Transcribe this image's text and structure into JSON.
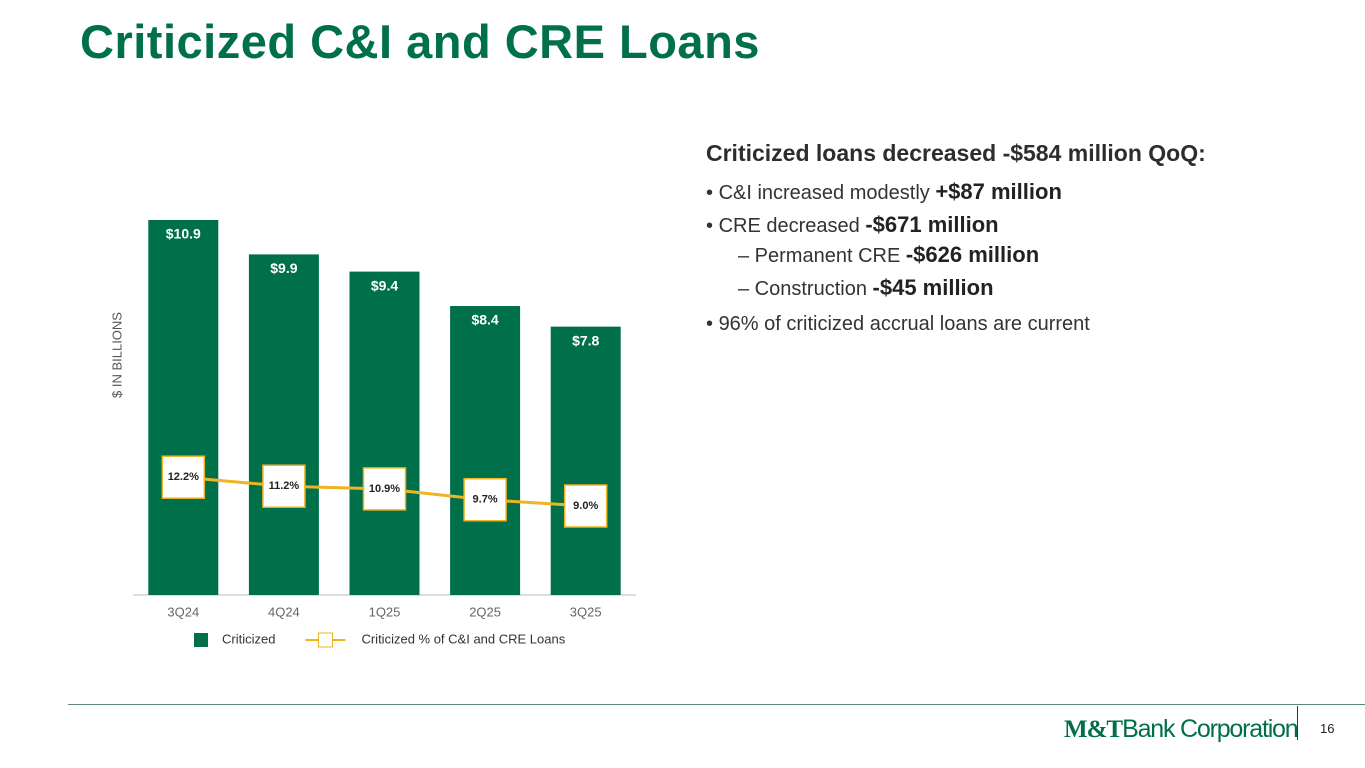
{
  "title": "Criticized C&I and CRE Loans",
  "chart_data": {
    "type": "bar",
    "y_label": "$ IN BILLIONS",
    "categories": [
      "3Q24",
      "4Q24",
      "1Q25",
      "2Q25",
      "3Q25"
    ],
    "series": [
      {
        "name": "Criticized",
        "type": "bar",
        "color": "#00704a",
        "values": [
          10.9,
          9.9,
          9.4,
          8.4,
          7.8
        ],
        "value_labels": [
          "$10.9",
          "$9.9",
          "$9.4",
          "$8.4",
          "$7.8"
        ]
      },
      {
        "name": "Criticized % of C&I and CRE Loans",
        "type": "line",
        "axis": "y2",
        "color": "#f0b323",
        "values": [
          12.2,
          11.2,
          10.9,
          9.7,
          9.0
        ],
        "value_labels": [
          "12.2%",
          "11.2%",
          "10.9%",
          "9.7%",
          "9.0%"
        ]
      }
    ]
  },
  "commentary": {
    "heading": "Criticized loans decreased -$584 million QoQ:",
    "bullets": [
      {
        "text": "C&I increased modestly ",
        "emphasis": "+$87 million"
      },
      {
        "text": "CRE decreased ",
        "emphasis": "-$671 million",
        "sub": [
          {
            "text": "– Permanent CRE ",
            "emphasis": "-$626 million"
          },
          {
            "text": "– Construction ",
            "emphasis": "-$45 million"
          }
        ]
      },
      {
        "text": "96% of criticized accrual loans are current"
      }
    ]
  },
  "footer": {
    "logo_mark": "M&T",
    "logo_name": "Bank Corporation",
    "page_number": "16"
  }
}
